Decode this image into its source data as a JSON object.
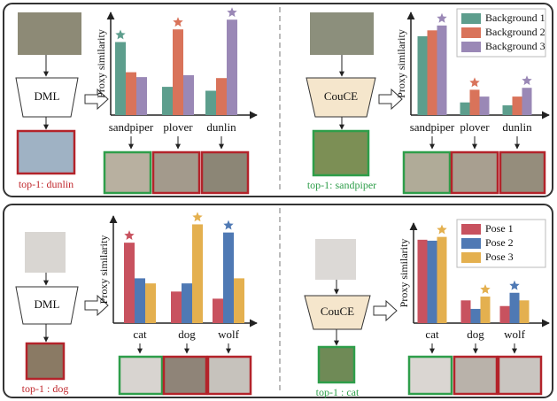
{
  "chart_data": [
    {
      "type": "bar",
      "y_label": "Proxy similarity",
      "categories": [
        "sandpiper",
        "plover",
        "dunlin"
      ],
      "series": [
        {
          "name": "Background 1",
          "color": "#5d9e8d",
          "values": [
            75,
            29,
            25
          ]
        },
        {
          "name": "Background 2",
          "color": "#d9735a",
          "values": [
            44,
            88,
            38
          ]
        },
        {
          "name": "Background 3",
          "color": "#9a88b6",
          "values": [
            39,
            41,
            98
          ]
        }
      ],
      "ylim": [
        0,
        100
      ],
      "legend": false,
      "highlight_max": true
    },
    {
      "type": "bar",
      "y_label": "Proxy similarity",
      "categories": [
        "sandpiper",
        "plover",
        "dunlin"
      ],
      "series": [
        {
          "name": "Background 1",
          "color": "#5d9e8d",
          "values": [
            81,
            13,
            10
          ]
        },
        {
          "name": "Background 2",
          "color": "#d9735a",
          "values": [
            87,
            26,
            19
          ]
        },
        {
          "name": "Background 3",
          "color": "#9a88b6",
          "values": [
            92,
            19,
            28
          ]
        }
      ],
      "ylim": [
        0,
        100
      ],
      "legend": true,
      "legend_position": "top-right",
      "highlight_max": true
    },
    {
      "type": "bar",
      "y_label": "Proxy similarity",
      "categories": [
        "cat",
        "dog",
        "wolf"
      ],
      "series": [
        {
          "name": "Pose 1",
          "color": "#c8525f",
          "values": [
            79,
            31,
            24
          ]
        },
        {
          "name": "Pose 2",
          "color": "#4f79b4",
          "values": [
            44,
            39,
            89
          ]
        },
        {
          "name": "Pose 3",
          "color": "#e4b04f",
          "values": [
            39,
            97,
            44
          ]
        }
      ],
      "ylim": [
        0,
        100
      ],
      "legend": false,
      "highlight_max": true
    },
    {
      "type": "bar",
      "y_label": "Proxy similarity",
      "categories": [
        "cat",
        "dog",
        "wolf"
      ],
      "series": [
        {
          "name": "Pose 1",
          "color": "#c8525f",
          "values": [
            88,
            24,
            18
          ]
        },
        {
          "name": "Pose 2",
          "color": "#4f79b4",
          "values": [
            87,
            15,
            32
          ]
        },
        {
          "name": "Pose 3",
          "color": "#e4b04f",
          "values": [
            91,
            28,
            24
          ]
        }
      ],
      "ylim": [
        0,
        100
      ],
      "legend": true,
      "legend_position": "top-right",
      "highlight_max": true
    }
  ],
  "panels": [
    {
      "model": "DML",
      "result": "top-1: dunlin"
    },
    {
      "model": "CouCE",
      "result": "top-1: sandpiper"
    },
    {
      "model": "DML",
      "result": "top-1 : dog"
    },
    {
      "model": "CouCE",
      "result": "top-1 : cat"
    }
  ]
}
